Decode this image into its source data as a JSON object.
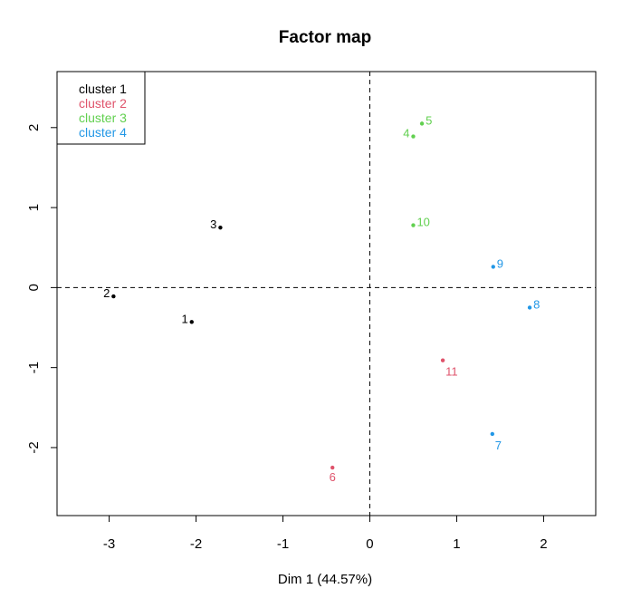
{
  "chart_data": {
    "type": "scatter",
    "title": "Factor map",
    "xlabel": "Dim 1 (44.57%)",
    "ylabel": "",
    "xlim": [
      -3.6,
      2.6
    ],
    "ylim": [
      -2.85,
      2.7
    ],
    "xticks": [
      "-3",
      "-2",
      "-1",
      "0",
      "1",
      "2"
    ],
    "xtick_values": [
      -3,
      -2,
      -1,
      0,
      1,
      2
    ],
    "yticks": [
      "-2",
      "-1",
      "0",
      "1",
      "2"
    ],
    "ytick_values": [
      -2,
      -1,
      0,
      1,
      2
    ],
    "reference_lines": {
      "x": 0,
      "y": 0,
      "style": "dashed"
    },
    "legend": {
      "position": "top-left",
      "entries": [
        {
          "name": "cluster 1",
          "color": "#000000"
        },
        {
          "name": "cluster 2",
          "color": "#DF536B"
        },
        {
          "name": "cluster 3",
          "color": "#61D04F"
        },
        {
          "name": "cluster 4",
          "color": "#2297E6"
        }
      ]
    },
    "series": [
      {
        "name": "cluster 1",
        "color": "#000000",
        "points": [
          {
            "label": "1",
            "x": -2.05,
            "y": -0.43,
            "label_pos": "left"
          },
          {
            "label": "2",
            "x": -2.95,
            "y": -0.11,
            "label_pos": "left"
          },
          {
            "label": "3",
            "x": -1.72,
            "y": 0.75,
            "label_pos": "left"
          }
        ]
      },
      {
        "name": "cluster 2",
        "color": "#DF536B",
        "points": [
          {
            "label": "6",
            "x": -0.43,
            "y": -2.25,
            "label_pos": "below"
          },
          {
            "label": "11",
            "x": 0.84,
            "y": -0.91,
            "label_pos": "below-right"
          }
        ]
      },
      {
        "name": "cluster 3",
        "color": "#61D04F",
        "points": [
          {
            "label": "4",
            "x": 0.5,
            "y": 1.89,
            "label_pos": "left"
          },
          {
            "label": "5",
            "x": 0.6,
            "y": 2.05,
            "label_pos": "right"
          },
          {
            "label": "10",
            "x": 0.5,
            "y": 0.78,
            "label_pos": "right"
          }
        ]
      },
      {
        "name": "cluster 4",
        "color": "#2297E6",
        "points": [
          {
            "label": "7",
            "x": 1.41,
            "y": -1.83,
            "label_pos": "below-right"
          },
          {
            "label": "8",
            "x": 1.84,
            "y": -0.25,
            "label_pos": "right"
          },
          {
            "label": "9",
            "x": 1.42,
            "y": 0.26,
            "label_pos": "right"
          }
        ]
      }
    ]
  }
}
